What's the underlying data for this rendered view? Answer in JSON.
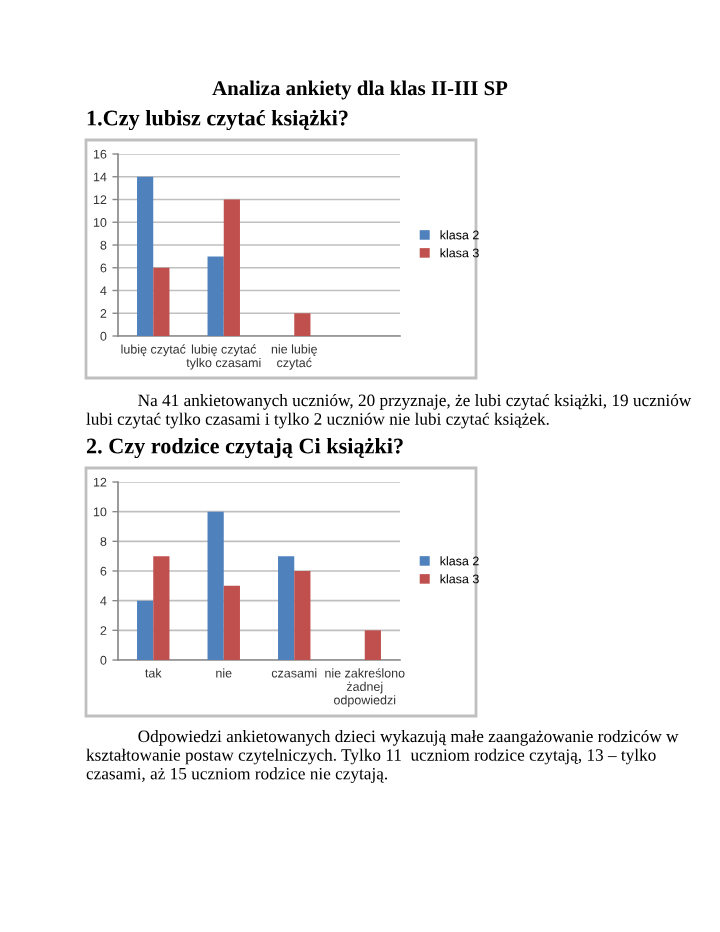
{
  "chart_data": [
    {
      "type": "bar",
      "title": "Analiza ankiety dla klas II-III SP",
      "subtitle": "1.Czy lubisz czytać książki?",
      "categories": [
        "lubię czytać",
        "lubię czytać tylko czasami",
        "nie lubię czytać",
        null
      ],
      "series": [
        {
          "name": "klasa 2",
          "color": "#4f81bd",
          "values": [
            14,
            7,
            null,
            null
          ]
        },
        {
          "name": "klasa 3",
          "color": "#c0504d",
          "values": [
            6,
            12,
            2,
            null
          ]
        }
      ],
      "ylim": [
        0,
        16
      ],
      "yticks": [
        0,
        2,
        4,
        6,
        8,
        10,
        12,
        14,
        16
      ],
      "grid": "y",
      "legend": "right",
      "annotations": [
        "Na 41 ankietowanych uczniów, 20 przyznaje, że lubi czytać książki, 19 uczniów lubi czytać tylko czasami i tylko 2 uczniów nie lubi czytać książek."
      ]
    },
    {
      "type": "bar",
      "title": "2. Czy rodzice czytają Ci książki?",
      "categories": [
        "tak",
        "nie",
        "czasami",
        "nie zakreślono żadnej odpowiedzi"
      ],
      "series": [
        {
          "name": "klasa 2",
          "color": "#4f81bd",
          "values": [
            4,
            10,
            7,
            null
          ]
        },
        {
          "name": "klasa 3",
          "color": "#c0504d",
          "values": [
            7,
            5,
            6,
            2
          ]
        }
      ],
      "ylim": [
        0,
        12
      ],
      "yticks": [
        0,
        2,
        4,
        6,
        8,
        10,
        12
      ],
      "grid": "y",
      "legend": "right",
      "annotations": [
        "Odpowiedzi ankietowanych dzieci wykazują małe zaangażowanie rodziców w kształtowanie postaw czytelniczych. Tylko 11  uczniom rodzice czytają, 13 – tylko czasami, aż 15 uczniom rodzice nie czytają."
      ]
    }
  ]
}
